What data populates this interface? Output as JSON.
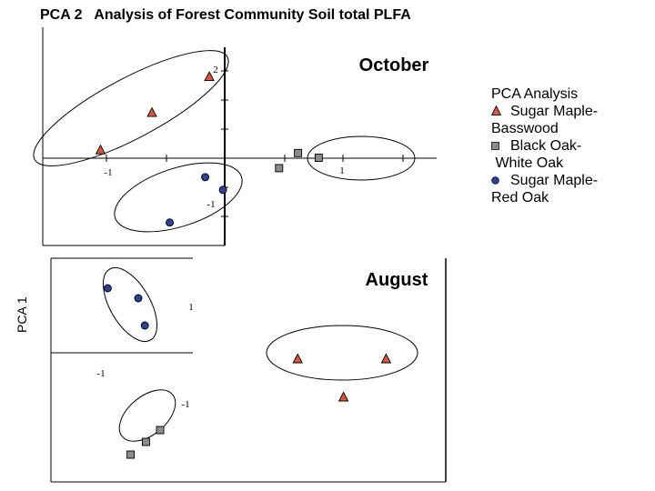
{
  "title": "PCA 2   Analysis of Forest Community Soil total PLFA",
  "ylabel": "PCA 1",
  "legend": {
    "title": "PCA  Analysis",
    "items": [
      {
        "line1": "Sugar Maple-",
        "line2": "Basswood",
        "marker": "triangle",
        "color": "#d9573e"
      },
      {
        "line1": "Black Oak-",
        "line2": " White Oak",
        "marker": "square",
        "color": "#8c8c8c"
      },
      {
        "line1": "Sugar Maple-",
        "line2": "Red Oak",
        "marker": "circle",
        "color": "#2f3f99"
      }
    ]
  },
  "chart_data": [
    {
      "type": "scatter",
      "title": "October",
      "xticklabels": [
        "-1",
        "1"
      ],
      "yticklabels": [
        "2",
        "-1"
      ],
      "series": [
        {
          "name": "Sugar Maple-Basswood",
          "marker": "triangle",
          "color": "#d9573e",
          "points": [
            [
              -0.26,
              1.72
            ],
            [
              -1.23,
              0.96
            ],
            [
              -2.1,
              0.17
            ]
          ]
        },
        {
          "name": "Black Oak-White Oak",
          "marker": "square",
          "color": "#8c8c8c",
          "points": [
            [
              1.24,
              0.11
            ],
            [
              1.59,
              0.01
            ],
            [
              0.92,
              -0.21
            ]
          ]
        },
        {
          "name": "Sugar Maple-Red Oak",
          "marker": "circle",
          "color": "#2f3f99",
          "points": [
            [
              -0.33,
              -0.4
            ],
            [
              -0.03,
              -0.67
            ],
            [
              -0.93,
              -1.36
            ]
          ]
        }
      ]
    },
    {
      "type": "scatter",
      "title": "August",
      "xticklabels": [
        "1"
      ],
      "yticklabels": [
        "-1",
        "-1"
      ],
      "series": [
        {
          "name": "Sugar Maple-Basswood",
          "marker": "triangle",
          "color": "#d9573e",
          "points": [
            [
              0.96,
              -0.07
            ],
            [
              1.77,
              -0.07
            ],
            [
              1.38,
              -0.49
            ]
          ]
        },
        {
          "name": "Black Oak-White Oak",
          "marker": "square",
          "color": "#8c8c8c",
          "points": [
            [
              -0.3,
              -0.85
            ],
            [
              -0.43,
              -0.98
            ],
            [
              -0.57,
              -1.12
            ]
          ]
        },
        {
          "name": "Sugar Maple-Red Oak",
          "marker": "circle",
          "color": "#2f3f99",
          "points": [
            [
              -0.78,
              0.71
            ],
            [
              -0.5,
              0.6
            ],
            [
              -0.44,
              0.3
            ]
          ]
        }
      ]
    }
  ]
}
